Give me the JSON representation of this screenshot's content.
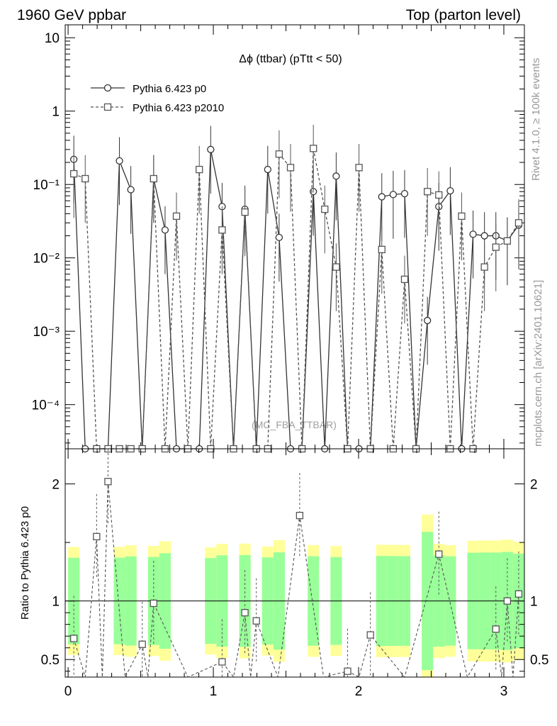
{
  "header": {
    "left": "1960 GeV ppbar",
    "right": "Top (parton level)"
  },
  "side_labels": {
    "rivet": "Rivet 4.1.0, ≥ 100k events",
    "mcplots": "mcplots.cern.ch [arXiv:2401.10621]"
  },
  "watermark": "(MC_FBA_TTBAR)",
  "colors": {
    "p0": "#333333",
    "p2010": "#555555",
    "band_inner": "#99ff99",
    "band_outer": "#ffff99"
  },
  "chart_data": [
    {
      "type": "line",
      "title": "Δϕ (ttbar) (pTtt < 50)",
      "xlabel": "",
      "ylabel": "",
      "xlim": [
        -0.02,
        3.1416
      ],
      "ylim": [
        2.5e-05,
        15
      ],
      "yscale": "log",
      "y_tick_labels": [
        "10",
        "1",
        "10⁻¹",
        "10⁻²",
        "10⁻³",
        "10⁻⁴"
      ],
      "legend": {
        "position": "top-left",
        "entries": [
          "Pythia 6.423 p0",
          "Pythia 6.423 p2010"
        ]
      },
      "series": [
        {
          "name": "Pythia 6.423 p0",
          "marker": "circle",
          "style": "solid",
          "x": [
            0.0393,
            0.1178,
            0.1963,
            0.2749,
            0.3534,
            0.432,
            0.5105,
            0.589,
            0.6676,
            0.7461,
            0.8247,
            0.9032,
            0.9817,
            1.0603,
            1.1388,
            1.2174,
            1.2959,
            1.3744,
            1.453,
            1.5315,
            1.6101,
            1.6886,
            1.7671,
            1.8457,
            1.9242,
            2.0028,
            2.0813,
            2.1598,
            2.2384,
            2.3169,
            2.3955,
            2.474,
            2.5525,
            2.6311,
            2.7096,
            2.7882,
            2.8667,
            2.9452,
            3.0238,
            3.1023
          ],
          "y": [
            0.22,
            0,
            0,
            0,
            0.21,
            0.085,
            0,
            0.12,
            0.024,
            0,
            0,
            0,
            0.3,
            0.05,
            0,
            0.046,
            0,
            0.16,
            0.019,
            0,
            0,
            0.08,
            0,
            0.13,
            0,
            0,
            0,
            0.068,
            0.073,
            0.075,
            0,
            0.0014,
            0.05,
            0.082,
            0,
            0.021,
            0.02,
            0.02,
            0.017,
            0.028
          ]
        },
        {
          "name": "Pythia 6.423 p2010",
          "marker": "square",
          "style": "dashed",
          "x": [
            0.0393,
            0.1178,
            0.1963,
            0.2749,
            0.3534,
            0.432,
            0.5105,
            0.589,
            0.6676,
            0.7461,
            0.8247,
            0.9032,
            0.9817,
            1.0603,
            1.1388,
            1.2174,
            1.2959,
            1.3744,
            1.453,
            1.5315,
            1.6101,
            1.6886,
            1.7671,
            1.8457,
            1.9242,
            2.0028,
            2.0813,
            2.1598,
            2.2384,
            2.3169,
            2.3955,
            2.474,
            2.5525,
            2.6311,
            2.7096,
            2.7882,
            2.8667,
            2.9452,
            3.0238,
            3.1023
          ],
          "y": [
            0.14,
            0.12,
            0,
            0,
            0,
            0,
            0,
            0.12,
            0,
            0.037,
            0,
            0.16,
            0,
            0.024,
            0,
            0.042,
            0,
            0,
            0.26,
            0.17,
            0,
            0.31,
            0.046,
            0.0075,
            0,
            0.17,
            0,
            0.013,
            0,
            0.0051,
            0,
            0.08,
            0.072,
            0,
            0.037,
            0,
            0.0075,
            0.014,
            0.017,
            0.03
          ]
        }
      ]
    },
    {
      "type": "line",
      "title": "",
      "xlabel": "",
      "ylabel": "Ratio to Pythia 6.423 p0",
      "xlim": [
        -0.02,
        3.1416
      ],
      "ylim": [
        0.35,
        2.3
      ],
      "x_tick_labels": [
        "0",
        "1",
        "2",
        "3"
      ],
      "y_tick_labels": [
        "0.5",
        "1",
        "2"
      ],
      "reference_line": 1,
      "series": [
        {
          "name": "Pythia 6.423 p2010 / p0",
          "marker": "square",
          "style": "dashed",
          "x": [
            0.0393,
            0.1963,
            0.2749,
            0.5105,
            0.589,
            1.0603,
            1.2174,
            1.2959,
            1.5944,
            1.9242,
            2.0813,
            2.5525,
            2.9452,
            3.0238,
            3.1023
          ],
          "y": [
            0.68,
            1.55,
            2.02,
            0.63,
            0.98,
            0.48,
            0.9,
            0.83,
            1.73,
            0.4,
            0.71,
            1.4,
            0.76,
            1.0,
            1.06
          ]
        }
      ]
    }
  ]
}
